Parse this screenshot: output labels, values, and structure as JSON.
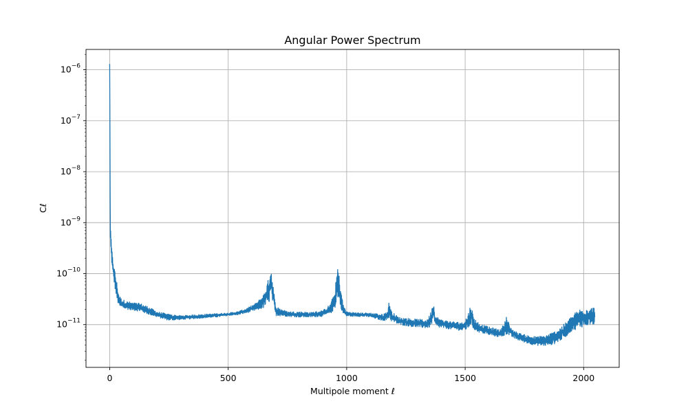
{
  "chart_data": {
    "type": "line",
    "title": "Angular Power Spectrum",
    "xlabel": "Multipole moment ℓ",
    "ylabel": "Cℓ",
    "xlim": [
      -100,
      2150
    ],
    "ylim": [
      1.45e-12,
      2.5e-06
    ],
    "yscale": "log",
    "grid": true,
    "xticks": [
      0,
      500,
      1000,
      1500,
      2000
    ],
    "xtick_labels": [
      "0",
      "500",
      "1000",
      "1500",
      "2000"
    ],
    "yticks": [
      1e-11,
      1e-10,
      1e-09,
      1e-08,
      1e-07,
      1e-06
    ],
    "ytick_labels": [
      {
        "base": "10",
        "exp": "−11"
      },
      {
        "base": "10",
        "exp": "−10"
      },
      {
        "base": "10",
        "exp": "−9"
      },
      {
        "base": "10",
        "exp": "−8"
      },
      {
        "base": "10",
        "exp": "−7"
      },
      {
        "base": "10",
        "exp": "−6"
      }
    ],
    "line_color": "#1f77b4",
    "series": [
      {
        "description_points": "upper/lower envelope of the noisy spectrum (x = multipole, values in Cl units)",
        "x": [
          0,
          2,
          5,
          8,
          12,
          20,
          30,
          40,
          50,
          70,
          100,
          130,
          160,
          200,
          250,
          300,
          350,
          400,
          450,
          500,
          540,
          580,
          620,
          650,
          670,
          680,
          690,
          700,
          750,
          800,
          850,
          900,
          930,
          950,
          962,
          970,
          985,
          1000,
          1050,
          1100,
          1150,
          1170,
          1180,
          1190,
          1220,
          1280,
          1340,
          1355,
          1365,
          1375,
          1400,
          1450,
          1490,
          1510,
          1525,
          1535,
          1560,
          1600,
          1650,
          1665,
          1675,
          1690,
          1720,
          1760,
          1800,
          1840,
          1880,
          1920,
          1950,
          1980,
          2010,
          2047
        ],
        "upper": [
          1.3e-06,
          3.5e-09,
          5.5e-10,
          3.5e-10,
          2.2e-10,
          1.3e-10,
          7e-11,
          3.8e-11,
          3.2e-11,
          2.9e-11,
          2.7e-11,
          2.6e-11,
          2.3e-11,
          1.8e-11,
          1.6e-11,
          1.5e-11,
          1.55e-11,
          1.6e-11,
          1.65e-11,
          1.7e-11,
          1.8e-11,
          2.1e-11,
          2.7e-11,
          4e-11,
          8e-11,
          1.5e-10,
          6e-11,
          2.3e-11,
          1.8e-11,
          1.8e-11,
          1.75e-11,
          1.9e-11,
          2.5e-11,
          4.5e-11,
          1.5e-10,
          8e-11,
          2.5e-11,
          1.8e-11,
          1.7e-11,
          1.7e-11,
          1.6e-11,
          1.8e-11,
          3e-11,
          1.8e-11,
          1.4e-11,
          1.3e-11,
          1.25e-11,
          1.8e-11,
          3.1e-11,
          1.5e-11,
          1.25e-11,
          1.15e-11,
          1.1e-11,
          1.5e-11,
          2.7e-11,
          1.4e-11,
          1.05e-11,
          9e-12,
          8e-12,
          1.1e-11,
          1.5e-11,
          9e-12,
          7e-12,
          6.2e-12,
          5.8e-12,
          6.2e-12,
          7.5e-12,
          1.05e-11,
          1.5e-11,
          2e-11,
          2.2e-11,
          2.2e-11
        ],
        "lower": [
          1.3e-06,
          3e-10,
          2.8e-10,
          1.8e-10,
          1e-10,
          6e-11,
          3e-11,
          2.2e-11,
          2.1e-11,
          2e-11,
          1.9e-11,
          1.8e-11,
          1.6e-11,
          1.4e-11,
          1.2e-11,
          1.25e-11,
          1.3e-11,
          1.35e-11,
          1.4e-11,
          1.5e-11,
          1.55e-11,
          1.7e-11,
          1.9e-11,
          2.1e-11,
          2.5e-11,
          3.3e-11,
          2.5e-11,
          1.5e-11,
          1.45e-11,
          1.4e-11,
          1.4e-11,
          1.45e-11,
          1.6e-11,
          2e-11,
          3.5e-11,
          2.5e-11,
          1.6e-11,
          1.45e-11,
          1.45e-11,
          1.4e-11,
          1.2e-11,
          1.2e-11,
          1.3e-11,
          1.15e-11,
          1e-11,
          9e-12,
          8.5e-12,
          9e-12,
          1.2e-11,
          9e-12,
          8.5e-12,
          8e-12,
          7.5e-12,
          8e-12,
          1e-11,
          8e-12,
          7e-12,
          6.2e-12,
          5.6e-12,
          6e-12,
          6.5e-12,
          5.8e-12,
          5e-12,
          4.3e-12,
          3.9e-12,
          3.8e-12,
          4.2e-12,
          5.5e-12,
          7.5e-12,
          8.5e-12,
          9.5e-12,
          1e-11
        ]
      }
    ]
  }
}
